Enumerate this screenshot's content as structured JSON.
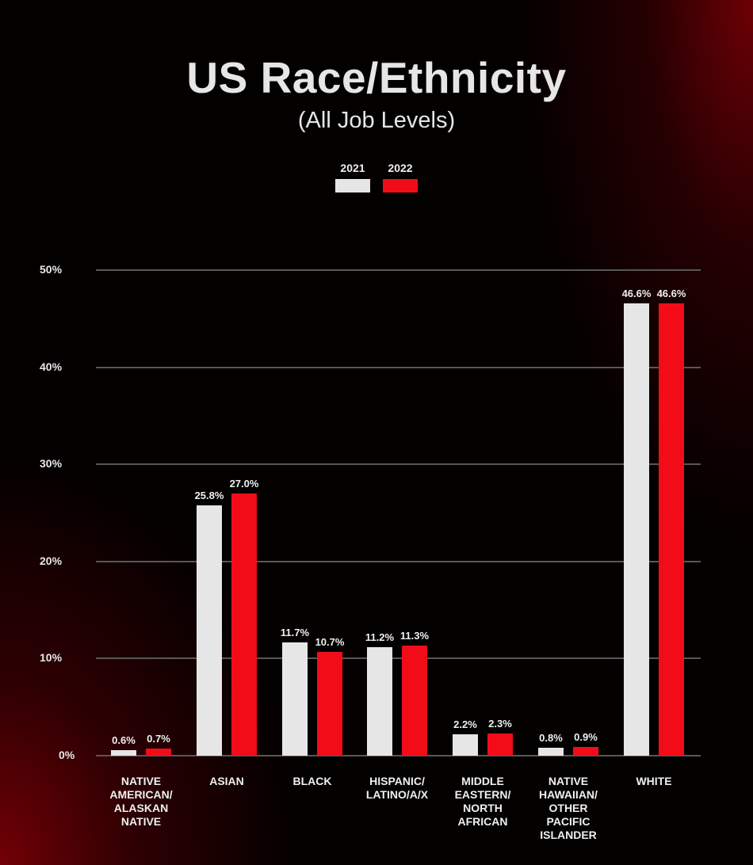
{
  "header": {
    "title": "US Race/Ethnicity",
    "subtitle": "(All Job Levels)"
  },
  "legend": [
    {
      "label": "2021",
      "color": "#e6e6e6"
    },
    {
      "label": "2022",
      "color": "#f20c18"
    }
  ],
  "axis": {
    "y_ticks": [
      "0%",
      "10%",
      "20%",
      "30%",
      "40%",
      "50%"
    ]
  },
  "chart_data": {
    "type": "bar",
    "title": "US Race/Ethnicity",
    "subtitle": "(All Job Levels)",
    "xlabel": "",
    "ylabel": "",
    "ylim": [
      0,
      50
    ],
    "y_tick_labels": [
      "0%",
      "10%",
      "20%",
      "30%",
      "40%",
      "50%"
    ],
    "grid": true,
    "legend_position": "top-center",
    "categories": [
      "NATIVE AMERICAN/ ALASKAN NATIVE",
      "ASIAN",
      "BLACK",
      "HISPANIC/ LATINO/A/X",
      "MIDDLE EASTERN/ NORTH AFRICAN",
      "NATIVE HAWAIIAN/ OTHER PACIFIC ISLANDER",
      "WHITE"
    ],
    "category_display": [
      "NATIVE\nAMERICAN/\nALASKAN\nNATIVE",
      "ASIAN",
      "BLACK",
      "HISPANIC/\nLATINO/A/X",
      "MIDDLE\nEASTERN/\nNORTH\nAFRICAN",
      "NATIVE\nHAWAIIAN/\nOTHER\nPACIFIC\nISLANDER",
      "WHITE"
    ],
    "series": [
      {
        "name": "2021",
        "color": "#e6e6e6",
        "values": [
          0.6,
          25.8,
          11.7,
          11.2,
          2.2,
          0.8,
          46.6
        ],
        "labels": [
          "0.6%",
          "25.8%",
          "11.7%",
          "11.2%",
          "2.2%",
          "0.8%",
          "46.6%"
        ]
      },
      {
        "name": "2022",
        "color": "#f20c18",
        "values": [
          0.7,
          27.0,
          10.7,
          11.3,
          2.3,
          0.9,
          46.6
        ],
        "labels": [
          "0.7%",
          "27.0%",
          "10.7%",
          "11.3%",
          "2.3%",
          "0.9%",
          "46.6%"
        ]
      }
    ]
  }
}
